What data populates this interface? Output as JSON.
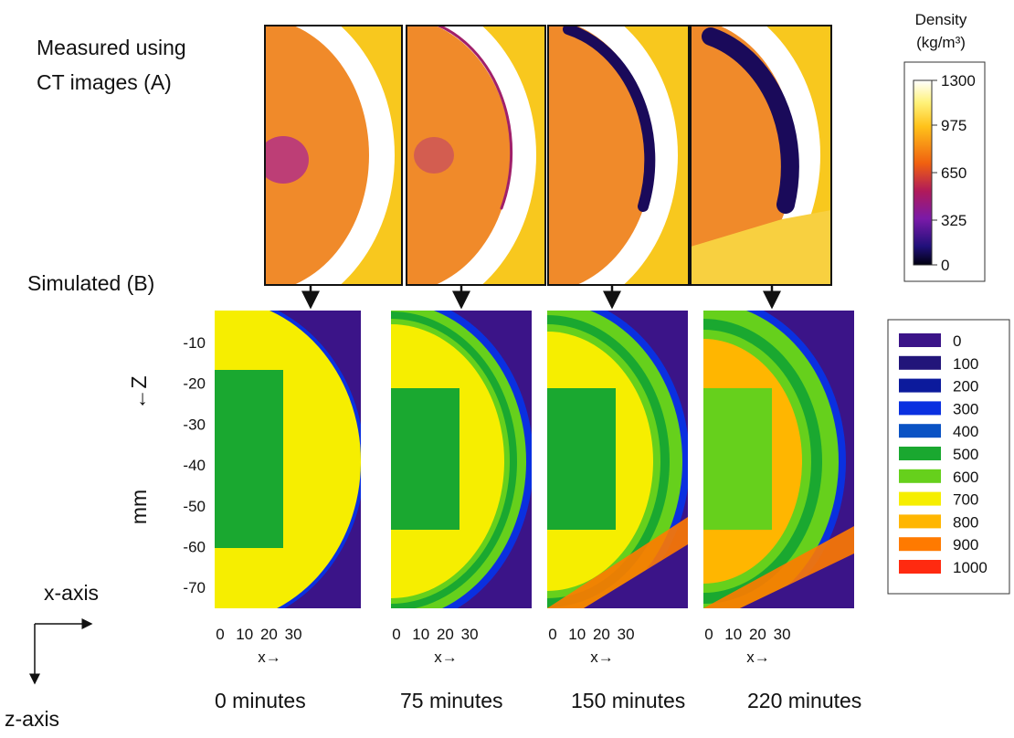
{
  "labels": {
    "measured": [
      "Measured using",
      "CT images (A)"
    ],
    "simulated": "Simulated (B)",
    "x_axis": "x-axis",
    "z_axis": "z-axis",
    "y_label": "mm",
    "z_label": "←Z",
    "x_label": "x→"
  },
  "density_scale": {
    "title": [
      "Density",
      "(kg/m³)"
    ],
    "ticks": [
      1300,
      975,
      650,
      325,
      0
    ]
  },
  "legend": {
    "entries": [
      0,
      100,
      200,
      300,
      400,
      500,
      600,
      700,
      800,
      900,
      1000
    ],
    "colors": [
      "#3b1488",
      "#22157a",
      "#0c1a9c",
      "#0a30e0",
      "#0a52c4",
      "#1aa830",
      "#66d01c",
      "#f6ee00",
      "#ffb600",
      "#ff7a00",
      "#ff2a10"
    ]
  },
  "yticks": [
    -10,
    -20,
    -30,
    -40,
    -50,
    -60,
    -70
  ],
  "xticks": [
    0,
    10,
    20,
    30
  ],
  "panels": [
    {
      "time": "0 minutes"
    },
    {
      "time": "75 minutes"
    },
    {
      "time": "150 minutes"
    },
    {
      "time": "220 minutes"
    }
  ]
}
